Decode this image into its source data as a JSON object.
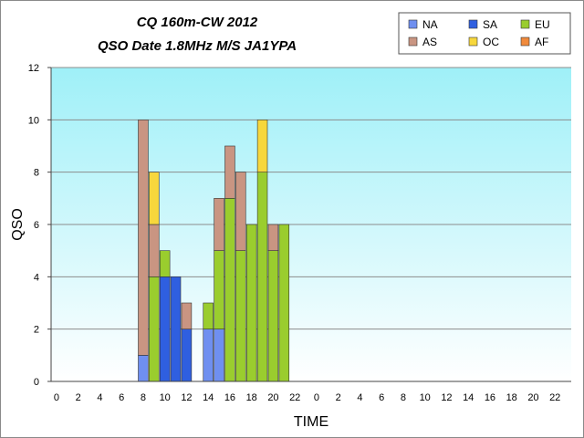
{
  "chart_data": {
    "type": "bar",
    "stacked": true,
    "title": "CQ 160m-CW 2012",
    "subtitle": "QSO Date 1.8MHz M/S JA1YPA",
    "xlabel": "TIME",
    "ylabel": "QSO",
    "ylim": [
      0,
      12
    ],
    "yticks": [
      "0",
      "2",
      "4",
      "6",
      "8",
      "10",
      "12"
    ],
    "grid": true,
    "legend_position": "top-right",
    "categories": [
      "0",
      "1",
      "2",
      "3",
      "4",
      "5",
      "6",
      "7",
      "8",
      "9",
      "10",
      "11",
      "12",
      "13",
      "14",
      "15",
      "16",
      "17",
      "18",
      "19",
      "20",
      "21",
      "22",
      "23",
      "0",
      "1",
      "2",
      "3",
      "4",
      "5",
      "6",
      "7",
      "8",
      "9",
      "10",
      "11",
      "12",
      "13",
      "14",
      "15",
      "16",
      "17",
      "18",
      "19",
      "20",
      "21",
      "22",
      "23"
    ],
    "series": [
      {
        "name": "NA",
        "color": "#6f8ff0",
        "values": [
          0,
          0,
          0,
          0,
          0,
          0,
          0,
          0,
          1,
          0,
          0,
          0,
          0,
          0,
          2,
          2,
          0,
          0,
          0,
          0,
          0,
          0,
          0,
          0,
          0,
          0,
          0,
          0,
          0,
          0,
          0,
          0,
          0,
          0,
          0,
          0,
          0,
          0,
          0,
          0,
          0,
          0,
          0,
          0,
          0,
          0,
          0,
          0
        ]
      },
      {
        "name": "SA",
        "color": "#2f5fe0",
        "values": [
          0,
          0,
          0,
          0,
          0,
          0,
          0,
          0,
          0,
          0,
          4,
          4,
          2,
          0,
          0,
          0,
          0,
          0,
          0,
          0,
          0,
          0,
          0,
          0,
          0,
          0,
          0,
          0,
          0,
          0,
          0,
          0,
          0,
          0,
          0,
          0,
          0,
          0,
          0,
          0,
          0,
          0,
          0,
          0,
          0,
          0,
          0,
          0
        ]
      },
      {
        "name": "EU",
        "color": "#9acd2e",
        "values": [
          0,
          0,
          0,
          0,
          0,
          0,
          0,
          0,
          0,
          4,
          1,
          0,
          0,
          0,
          1,
          3,
          7,
          5,
          6,
          8,
          5,
          6,
          0,
          0,
          0,
          0,
          0,
          0,
          0,
          0,
          0,
          0,
          0,
          0,
          0,
          0,
          0,
          0,
          0,
          0,
          0,
          0,
          0,
          0,
          0,
          0,
          0,
          0
        ]
      },
      {
        "name": "AS",
        "color": "#c99582",
        "values": [
          0,
          0,
          0,
          0,
          0,
          0,
          0,
          0,
          9,
          2,
          0,
          0,
          1,
          0,
          0,
          2,
          2,
          3,
          0,
          0,
          1,
          0,
          0,
          0,
          0,
          0,
          0,
          0,
          0,
          0,
          0,
          0,
          0,
          0,
          0,
          0,
          0,
          0,
          0,
          0,
          0,
          0,
          0,
          0,
          0,
          0,
          0,
          0
        ]
      },
      {
        "name": "OC",
        "color": "#f7d73c",
        "values": [
          0,
          0,
          0,
          0,
          0,
          0,
          0,
          0,
          0,
          2,
          0,
          0,
          0,
          0,
          0,
          0,
          0,
          0,
          0,
          2,
          0,
          0,
          0,
          0,
          0,
          0,
          0,
          0,
          0,
          0,
          0,
          0,
          0,
          0,
          0,
          0,
          0,
          0,
          0,
          0,
          0,
          0,
          0,
          0,
          0,
          0,
          0,
          0
        ]
      },
      {
        "name": "AF",
        "color": "#f08a3c",
        "values": [
          0,
          0,
          0,
          0,
          0,
          0,
          0,
          0,
          0,
          0,
          0,
          0,
          0,
          0,
          0,
          0,
          0,
          0,
          0,
          0,
          0,
          0,
          0,
          0,
          0,
          0,
          0,
          0,
          0,
          0,
          0,
          0,
          0,
          0,
          0,
          0,
          0,
          0,
          0,
          0,
          0,
          0,
          0,
          0,
          0,
          0,
          0,
          0
        ]
      }
    ],
    "xtick_labels": [
      "0",
      "2",
      "4",
      "6",
      "8",
      "10",
      "12",
      "14",
      "16",
      "18",
      "20",
      "22",
      "0",
      "2",
      "4",
      "6",
      "8",
      "10",
      "12",
      "14",
      "16",
      "18",
      "20",
      "22"
    ]
  }
}
